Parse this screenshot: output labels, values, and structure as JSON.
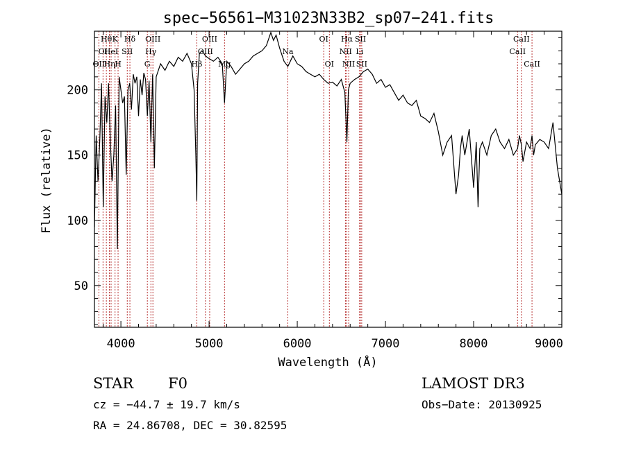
{
  "chart_data": {
    "type": "line",
    "title": "spec−56561−M31023N33B2_sp07−241.fits",
    "xlabel": "Wavelength (Å)",
    "ylabel": "Flux (relative)",
    "xlim": [
      3700,
      9000
    ],
    "ylim": [
      18,
      245
    ],
    "x_ticks": [
      4000,
      5000,
      6000,
      7000,
      8000,
      9000
    ],
    "x_tick_labels": [
      "4000",
      "5000",
      "6000",
      "7000",
      "8000",
      "9000"
    ],
    "y_ticks": [
      50,
      100,
      150,
      200
    ],
    "y_tick_labels": [
      "50",
      "100",
      "150",
      "200"
    ],
    "series": [
      {
        "name": "spectrum",
        "x": [
          3700,
          3720,
          3740,
          3760,
          3780,
          3800,
          3820,
          3840,
          3860,
          3880,
          3900,
          3920,
          3940,
          3960,
          3980,
          4000,
          4020,
          4040,
          4060,
          4080,
          4100,
          4120,
          4140,
          4160,
          4180,
          4200,
          4220,
          4240,
          4260,
          4280,
          4300,
          4320,
          4340,
          4360,
          4380,
          4400,
          4450,
          4500,
          4550,
          4600,
          4650,
          4700,
          4750,
          4800,
          4830,
          4850,
          4861,
          4870,
          4890,
          4920,
          4960,
          5000,
          5050,
          5100,
          5150,
          5175,
          5200,
          5250,
          5300,
          5350,
          5400,
          5450,
          5500,
          5550,
          5600,
          5650,
          5700,
          5730,
          5760,
          5800,
          5850,
          5893,
          5950,
          6000,
          6050,
          6100,
          6150,
          6200,
          6250,
          6300,
          6350,
          6400,
          6450,
          6500,
          6540,
          6563,
          6580,
          6600,
          6650,
          6700,
          6750,
          6800,
          6850,
          6900,
          6950,
          7000,
          7050,
          7100,
          7150,
          7200,
          7250,
          7300,
          7350,
          7400,
          7450,
          7500,
          7550,
          7600,
          7650,
          7700,
          7750,
          7800,
          7830,
          7850,
          7870,
          7900,
          7950,
          8000,
          8030,
          8050,
          8070,
          8100,
          8150,
          8200,
          8250,
          8300,
          8350,
          8400,
          8450,
          8498,
          8520,
          8542,
          8560,
          8600,
          8640,
          8662,
          8680,
          8700,
          8750,
          8800,
          8850,
          8900,
          8950,
          9000
        ],
        "values": [
          95,
          165,
          130,
          160,
          205,
          110,
          195,
          175,
          205,
          160,
          130,
          150,
          188,
          78,
          210,
          200,
          190,
          195,
          135,
          200,
          205,
          185,
          212,
          205,
          210,
          180,
          208,
          196,
          213,
          208,
          180,
          207,
          160,
          212,
          140,
          210,
          220,
          215,
          222,
          218,
          225,
          222,
          228,
          220,
          200,
          150,
          115,
          205,
          228,
          230,
          226,
          224,
          222,
          225,
          220,
          190,
          222,
          218,
          212,
          216,
          220,
          222,
          226,
          228,
          230,
          234,
          244,
          238,
          242,
          232,
          222,
          218,
          226,
          220,
          218,
          214,
          212,
          210,
          212,
          208,
          205,
          206,
          203,
          208,
          198,
          160,
          200,
          205,
          208,
          210,
          214,
          216,
          212,
          205,
          208,
          202,
          204,
          198,
          192,
          196,
          190,
          188,
          192,
          180,
          178,
          175,
          182,
          168,
          150,
          160,
          165,
          120,
          135,
          155,
          165,
          150,
          170,
          125,
          160,
          110,
          155,
          160,
          150,
          165,
          170,
          160,
          155,
          162,
          150,
          155,
          165,
          158,
          145,
          160,
          155,
          165,
          150,
          158,
          162,
          160,
          155,
          175,
          140,
          120
        ]
      }
    ],
    "lines": [
      {
        "wl": 3750,
        "label": "OII",
        "row": 3
      },
      {
        "wl": 3797,
        "label": "OI",
        "row": 2
      },
      {
        "wl": 3835,
        "label": "Hθ",
        "row": 1
      },
      {
        "wl": 3870,
        "label": "Hη",
        "row": 3
      },
      {
        "wl": 3889,
        "label": "HeI",
        "row": 2
      },
      {
        "wl": 3934,
        "label": "K",
        "row": 1
      },
      {
        "wl": 3968,
        "label": "H",
        "row": 3
      },
      {
        "wl": 4072,
        "label": "SII",
        "row": 2
      },
      {
        "wl": 4102,
        "label": "Hδ",
        "row": 1
      },
      {
        "wl": 4300,
        "label": "G",
        "row": 3
      },
      {
        "wl": 4340,
        "label": "Hγ",
        "row": 2
      },
      {
        "wl": 4363,
        "label": "OIII",
        "row": 1
      },
      {
        "wl": 4861,
        "label": "Hβ",
        "row": 3
      },
      {
        "wl": 4959,
        "label": "OIII",
        "row": 2
      },
      {
        "wl": 5007,
        "label": "OIII",
        "row": 1
      },
      {
        "wl": 5175,
        "label": "Mg",
        "row": 3
      },
      {
        "wl": 5893,
        "label": "Na",
        "row": 2
      },
      {
        "wl": 6300,
        "label": "OI",
        "row": 1
      },
      {
        "wl": 6364,
        "label": "OI",
        "row": 3
      },
      {
        "wl": 6548,
        "label": "NII",
        "row": 2
      },
      {
        "wl": 6563,
        "label": "Hα",
        "row": 1
      },
      {
        "wl": 6583,
        "label": "NII",
        "row": 3
      },
      {
        "wl": 6707,
        "label": "Li",
        "row": 2
      },
      {
        "wl": 6716,
        "label": "SII",
        "row": 1
      },
      {
        "wl": 6731,
        "label": "SII",
        "row": 3
      },
      {
        "wl": 8498,
        "label": "CaII",
        "row": 2
      },
      {
        "wl": 8542,
        "label": "CaII",
        "row": 1
      },
      {
        "wl": 8662,
        "label": "CaII",
        "row": 3
      }
    ]
  },
  "info": {
    "object_class": "STAR",
    "subclass": "F0",
    "survey": "LAMOST DR3",
    "redshift": "cz = −44.7 ± 19.7 km/s",
    "obs_date": "Obs−Date: 20130925",
    "coords": "RA =  24.86708, DEC =  30.82595"
  },
  "colors": {
    "spectrum": "#000000",
    "line_marker": "#b22222",
    "axes": "#000000"
  }
}
